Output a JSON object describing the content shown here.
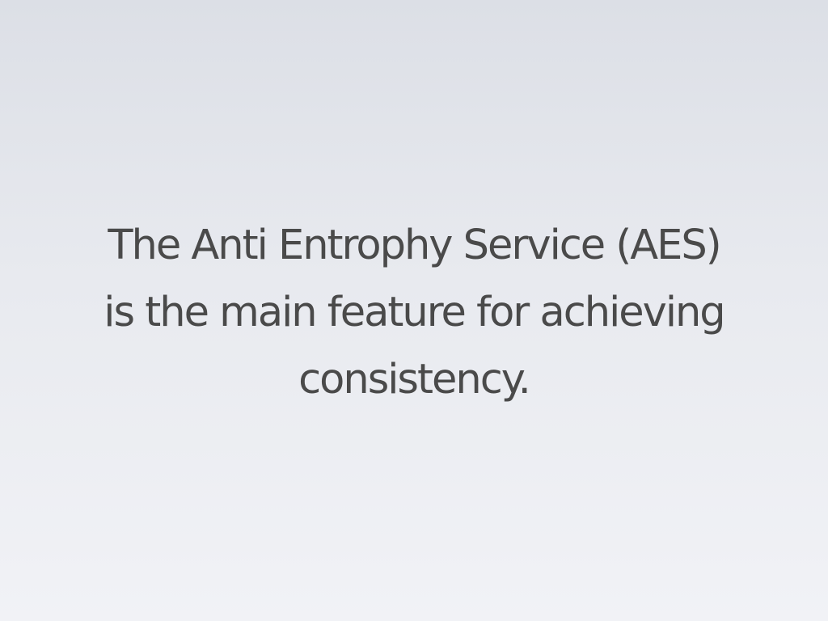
{
  "slide": {
    "lines": [
      "The Anti Entrophy Service (AES)",
      "is the main feature for achieving",
      "consistency."
    ]
  },
  "colors": {
    "background_top": "#dcdfe6",
    "background_bottom": "#f1f2f6",
    "text": "#4a4a4a"
  }
}
